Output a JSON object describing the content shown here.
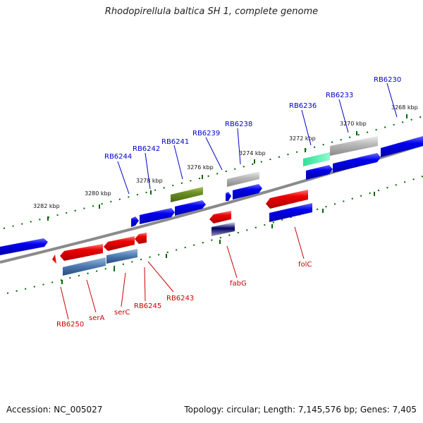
{
  "title": "Rhodopirellula baltica SH 1, complete genome",
  "footer": {
    "accession": "Accession: NC_005027",
    "summary": "Topology: circular; Length: 7,145,576 bp; Genes: 7,405"
  },
  "ruler_labels": [
    "3282 kbp",
    "3280 kbp",
    "3278 kbp",
    "3276 kbp",
    "3274 kbp",
    "3272 kbp",
    "3270 kbp",
    "3268 kbp"
  ],
  "forward_labels": [
    "RB6244",
    "RB6242",
    "RB6241",
    "RB6239",
    "RB6238",
    "RB6236",
    "RB6233",
    "RB6230"
  ],
  "reverse_labels": [
    "RB6250",
    "serA",
    "serC",
    "RB6245",
    "RB6243",
    "fabG",
    "folC"
  ],
  "colors": {
    "forward_label": "#0000cc",
    "reverse_label": "#cc0000",
    "tick": "#006600",
    "backbone": "#888888",
    "forward_gene": "#0000ee",
    "reverse_gene": "#ee0000"
  }
}
